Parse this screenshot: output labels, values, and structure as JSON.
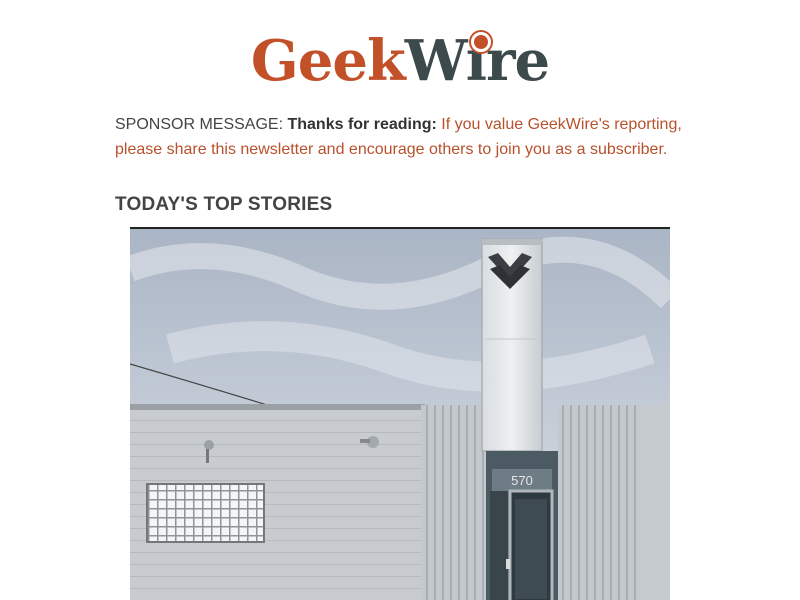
{
  "logo": {
    "part1": "Geek",
    "part2": "Wire"
  },
  "sponsor": {
    "prefix": "SPONSOR MESSAGE: ",
    "bold": "Thanks for reading:",
    "link_text": " If you value GeekWire's reporting, please share this newsletter and encourage others to join you as a subscriber."
  },
  "section": {
    "title": "TODAY'S TOP STORIES"
  },
  "photo": {
    "door_number": "570"
  },
  "colors": {
    "brand_orange": "#c2512a",
    "brand_dark": "#3d4a4b",
    "link": "#b8512c"
  }
}
